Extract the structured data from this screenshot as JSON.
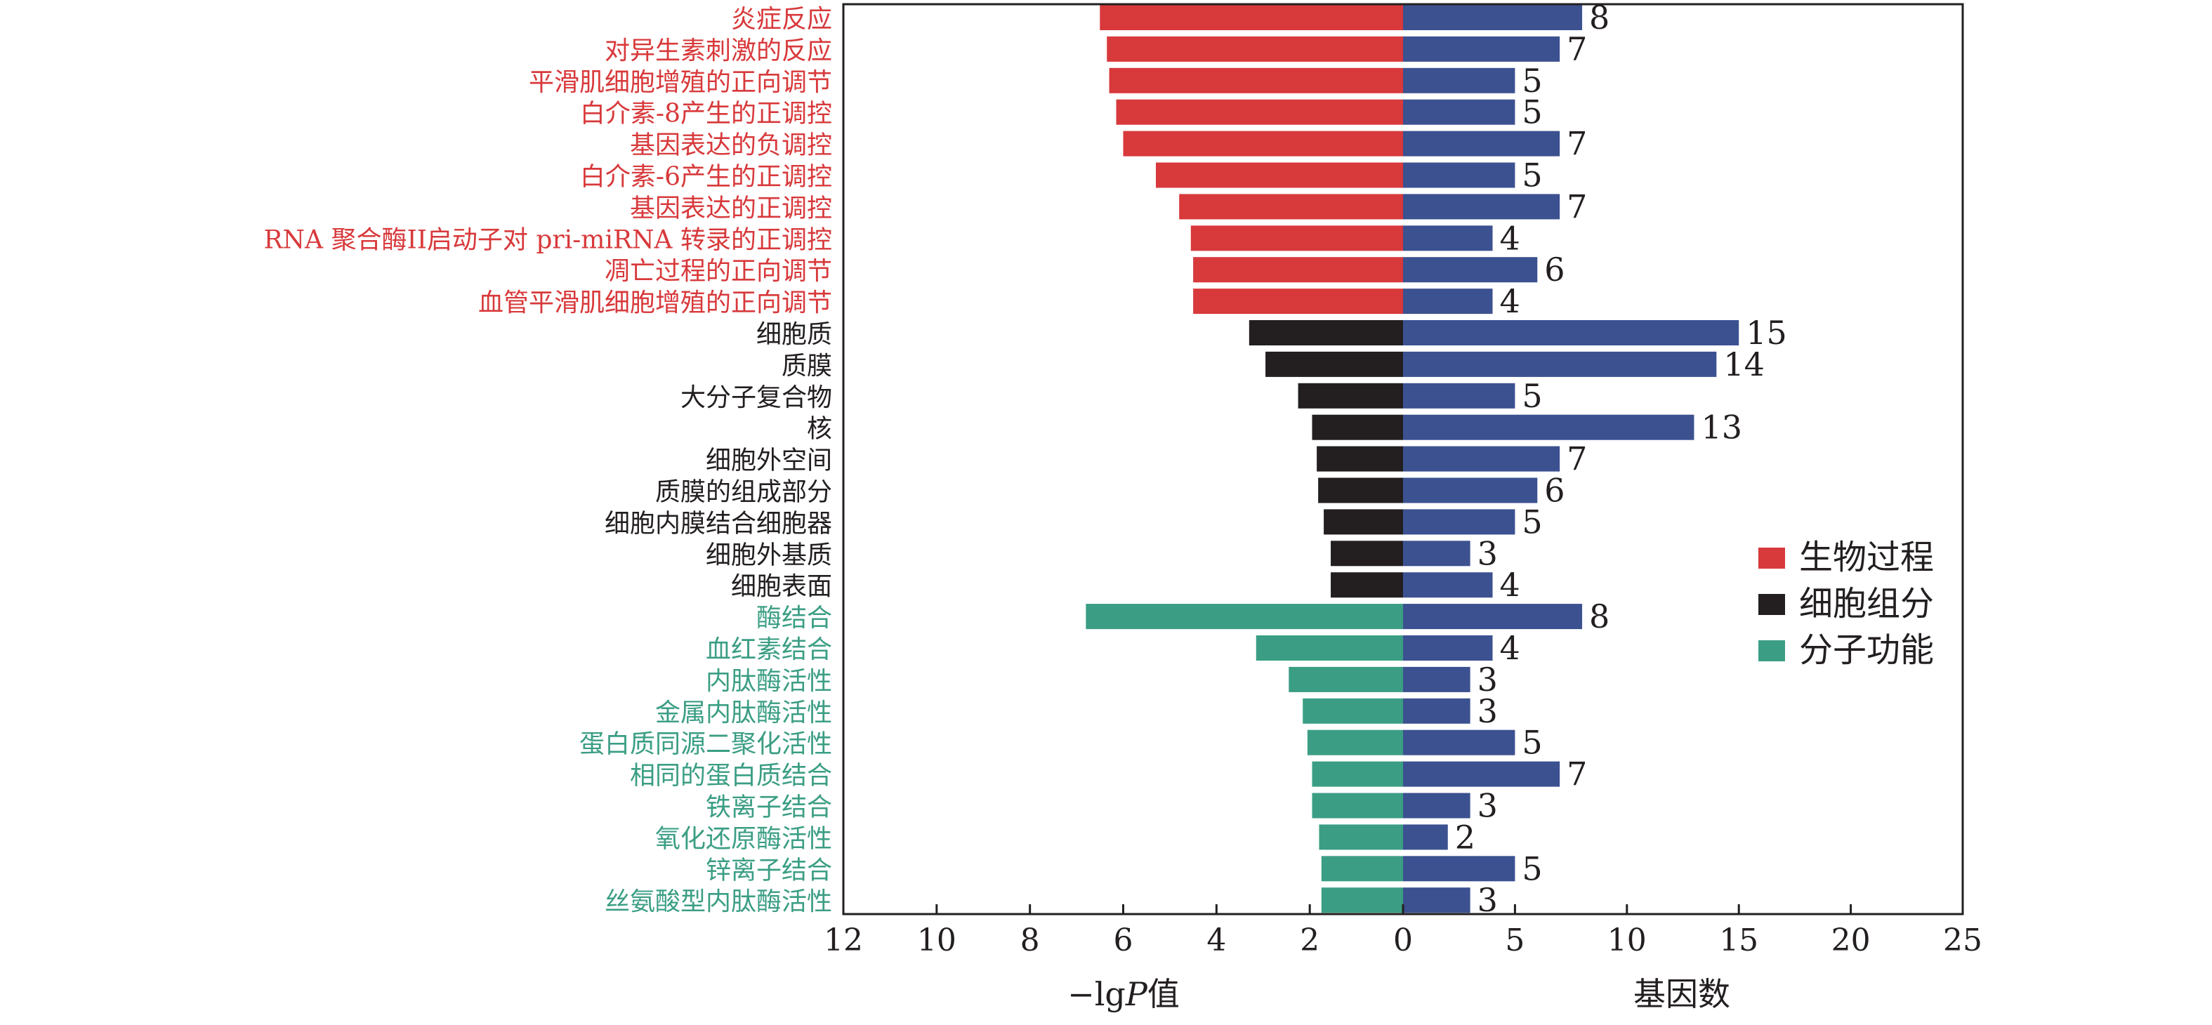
{
  "chart_data": {
    "type": "bar",
    "layout": "diverging-horizontal",
    "categories": [
      "炎症反应",
      "对异生素刺激的反应",
      "平滑肌细胞增殖的正向调节",
      "白介素-8产生的正调控",
      "基因表达的负调控",
      "白介素-6产生的正调控",
      "基因表达的正调控",
      "RNA 聚合酶II启动子对 pri-miRNA 转录的正调控",
      "凋亡过程的正向调节",
      "血管平滑肌细胞增殖的正向调节",
      "细胞质",
      "质膜",
      "大分子复合物",
      "核",
      "细胞外空间",
      "质膜的组成部分",
      "细胞内膜结合细胞器",
      "细胞外基质",
      "细胞表面",
      "酶结合",
      "血红素结合",
      "内肽酶活性",
      "金属内肽酶活性",
      "蛋白质同源二聚化活性",
      "相同的蛋白质结合",
      "铁离子结合",
      "氧化还原酶活性",
      "锌离子结合",
      "丝氨酸型内肽酶活性"
    ],
    "groups": [
      "生物过程",
      "生物过程",
      "生物过程",
      "生物过程",
      "生物过程",
      "生物过程",
      "生物过程",
      "生物过程",
      "生物过程",
      "生物过程",
      "细胞组分",
      "细胞组分",
      "细胞组分",
      "细胞组分",
      "细胞组分",
      "细胞组分",
      "细胞组分",
      "细胞组分",
      "细胞组分",
      "分子功能",
      "分子功能",
      "分子功能",
      "分子功能",
      "分子功能",
      "分子功能",
      "分子功能",
      "分子功能",
      "分子功能",
      "分子功能"
    ],
    "series": [
      {
        "name": "-lgP",
        "values": [
          6.5,
          6.35,
          6.3,
          6.15,
          6.0,
          5.3,
          4.8,
          4.55,
          4.5,
          4.5,
          3.3,
          2.95,
          2.25,
          1.95,
          1.85,
          1.82,
          1.7,
          1.55,
          1.55,
          6.8,
          3.15,
          2.45,
          2.15,
          2.05,
          1.95,
          1.95,
          1.8,
          1.75,
          1.75
        ]
      },
      {
        "name": "基因数",
        "values": [
          8,
          7,
          5,
          5,
          7,
          5,
          7,
          4,
          6,
          4,
          15,
          14,
          5,
          13,
          7,
          6,
          5,
          3,
          4,
          8,
          4,
          3,
          3,
          5,
          7,
          3,
          2,
          5,
          3
        ]
      }
    ],
    "left_axis": {
      "label_prefix": "−lg",
      "label_italic": "P",
      "label_suffix": "值",
      "ticks": [
        "12",
        "10",
        "8",
        "6",
        "4",
        "2",
        "0"
      ],
      "range": [
        12,
        0
      ]
    },
    "right_axis": {
      "label": "基因数",
      "ticks": [
        "0",
        "5",
        "10",
        "15",
        "20",
        "25"
      ],
      "range": [
        0,
        25
      ]
    },
    "legend": {
      "placement": "right",
      "items": [
        "生物过程",
        "细胞组分",
        "分子功能"
      ]
    },
    "colors": {
      "bio": "#d8393b",
      "cell": "#231f20",
      "mol": "#3b9e84",
      "genes": "#3c5190",
      "label_bio": "#d8393b",
      "label_cell": "#231f20",
      "label_mol": "#3b9e84"
    }
  }
}
